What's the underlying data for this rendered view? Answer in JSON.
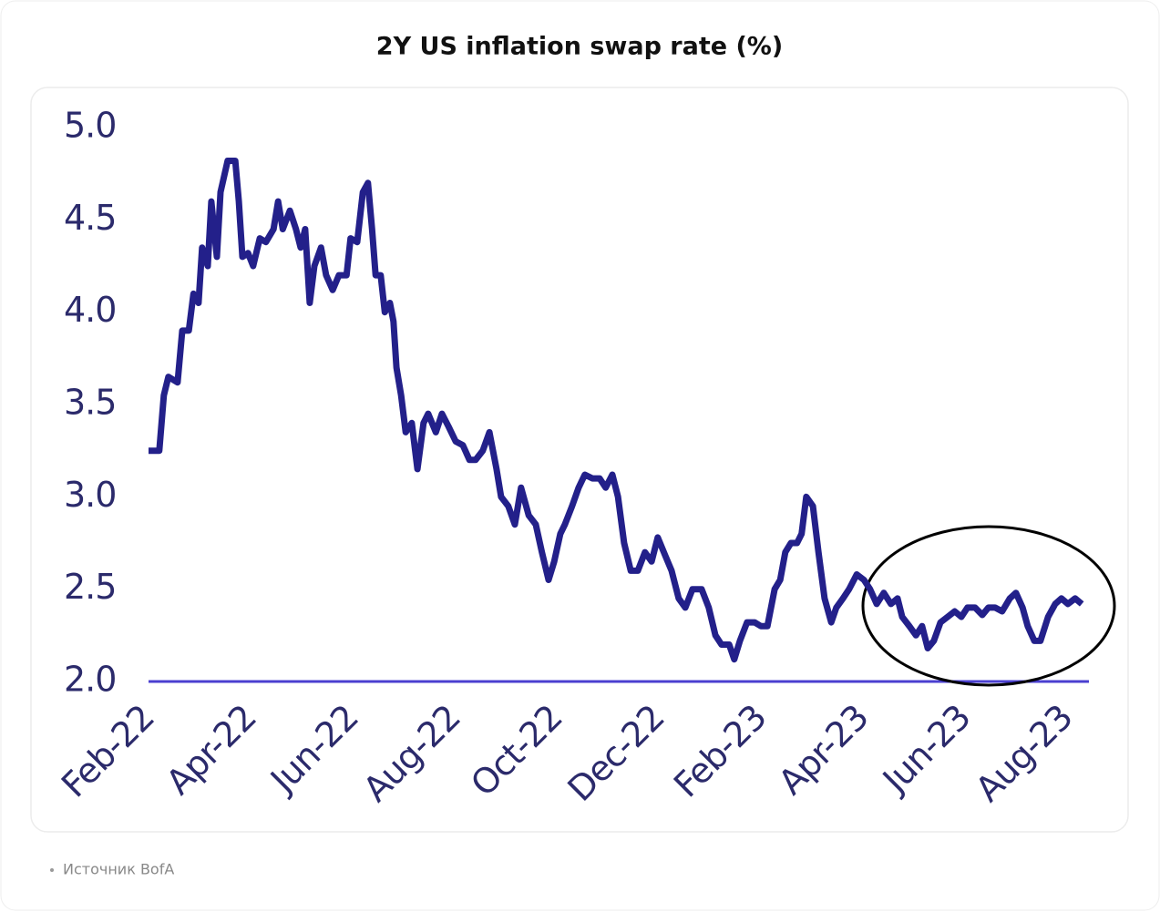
{
  "chart_data": {
    "type": "line",
    "title": "2Y US inflation swap rate (%)",
    "source": "Источник BofA",
    "xlim": [
      0,
      18.43
    ],
    "xticks": [
      {
        "value": 0,
        "label": "Feb-22"
      },
      {
        "value": 2,
        "label": "Apr-22"
      },
      {
        "value": 4,
        "label": "Jun-22"
      },
      {
        "value": 6,
        "label": "Aug-22"
      },
      {
        "value": 8,
        "label": "Oct-22"
      },
      {
        "value": 10,
        "label": "Dec-22"
      },
      {
        "value": 12,
        "label": "Feb-23"
      },
      {
        "value": 14,
        "label": "Apr-23"
      },
      {
        "value": 16,
        "label": "Jun-23"
      },
      {
        "value": 18,
        "label": "Aug-23"
      }
    ],
    "ylim": [
      2,
      5
    ],
    "yticks": [
      {
        "value": 2,
        "label": "2.0"
      },
      2.5,
      {
        "value": 3,
        "label": "3.0"
      },
      3.5,
      {
        "value": 4,
        "label": "4.0"
      },
      4.5,
      {
        "value": 5,
        "label": "5.0"
      }
    ],
    "x": [
      0,
      0.21,
      0.3,
      0.39,
      0.57,
      0.66,
      0.79,
      0.88,
      0.98,
      1.05,
      1.16,
      1.23,
      1.34,
      1.41,
      1.55,
      1.7,
      1.77,
      1.84,
      1.95,
      2.05,
      2.18,
      2.3,
      2.45,
      2.54,
      2.63,
      2.77,
      2.89,
      2.98,
      3.07,
      3.16,
      3.25,
      3.38,
      3.48,
      3.61,
      3.73,
      3.88,
      3.96,
      4.09,
      4.2,
      4.3,
      4.38,
      4.45,
      4.55,
      4.63,
      4.73,
      4.8,
      4.86,
      4.95,
      5.04,
      5.16,
      5.27,
      5.39,
      5.48,
      5.63,
      5.75,
      5.88,
      6.02,
      6.16,
      6.29,
      6.41,
      6.55,
      6.68,
      6.82,
      6.91,
      7.05,
      7.18,
      7.3,
      7.45,
      7.59,
      7.71,
      7.84,
      7.95,
      8.07,
      8.16,
      8.3,
      8.43,
      8.55,
      8.7,
      8.84,
      8.96,
      9.09,
      9.2,
      9.32,
      9.45,
      9.59,
      9.73,
      9.86,
      9.98,
      10.13,
      10.25,
      10.39,
      10.52,
      10.66,
      10.84,
      10.98,
      11.11,
      11.23,
      11.38,
      11.48,
      11.59,
      11.73,
      11.88,
      12.0,
      12.13,
      12.27,
      12.38,
      12.48,
      12.59,
      12.71,
      12.8,
      12.89,
      13.02,
      13.13,
      13.25,
      13.38,
      13.48,
      13.61,
      13.73,
      13.88,
      14.02,
      14.14,
      14.27,
      14.41,
      14.55,
      14.68,
      14.77,
      14.91,
      15.04,
      15.16,
      15.27,
      15.39,
      15.52,
      15.66,
      15.8,
      15.93,
      16.05,
      16.2,
      16.34,
      16.46,
      16.59,
      16.73,
      16.88,
      17.0,
      17.13,
      17.23,
      17.36,
      17.48,
      17.63,
      17.77,
      17.89,
      18.02,
      18.16,
      18.29
    ],
    "series": [
      {
        "color": "#23208a",
        "values": [
          3.25,
          3.25,
          3.55,
          3.65,
          3.62,
          3.9,
          3.9,
          4.1,
          4.05,
          4.35,
          4.25,
          4.6,
          4.3,
          4.65,
          4.82,
          4.82,
          4.6,
          4.3,
          4.32,
          4.25,
          4.4,
          4.38,
          4.45,
          4.6,
          4.45,
          4.55,
          4.45,
          4.35,
          4.45,
          4.05,
          4.25,
          4.35,
          4.2,
          4.12,
          4.2,
          4.2,
          4.4,
          4.38,
          4.65,
          4.7,
          4.45,
          4.2,
          4.2,
          4.0,
          4.05,
          3.95,
          3.7,
          3.55,
          3.35,
          3.4,
          3.15,
          3.4,
          3.45,
          3.35,
          3.45,
          3.38,
          3.3,
          3.28,
          3.2,
          3.2,
          3.25,
          3.35,
          3.15,
          3.0,
          2.95,
          2.85,
          3.05,
          2.9,
          2.85,
          2.7,
          2.55,
          2.65,
          2.8,
          2.85,
          2.95,
          3.05,
          3.12,
          3.1,
          3.1,
          3.05,
          3.12,
          3.0,
          2.75,
          2.6,
          2.6,
          2.7,
          2.65,
          2.78,
          2.68,
          2.6,
          2.45,
          2.4,
          2.5,
          2.5,
          2.4,
          2.25,
          2.2,
          2.2,
          2.12,
          2.22,
          2.32,
          2.32,
          2.3,
          2.3,
          2.5,
          2.55,
          2.7,
          2.75,
          2.75,
          2.8,
          3.0,
          2.95,
          2.7,
          2.45,
          2.32,
          2.4,
          2.45,
          2.5,
          2.58,
          2.55,
          2.5,
          2.42,
          2.48,
          2.42,
          2.45,
          2.35,
          2.3,
          2.25,
          2.3,
          2.18,
          2.22,
          2.32,
          2.35,
          2.38,
          2.35,
          2.4,
          2.4,
          2.36,
          2.4,
          2.4,
          2.38,
          2.45,
          2.48,
          2.4,
          2.3,
          2.22,
          2.22,
          2.35,
          2.42,
          2.45,
          2.42,
          2.45,
          2.42
        ]
      }
    ]
  }
}
